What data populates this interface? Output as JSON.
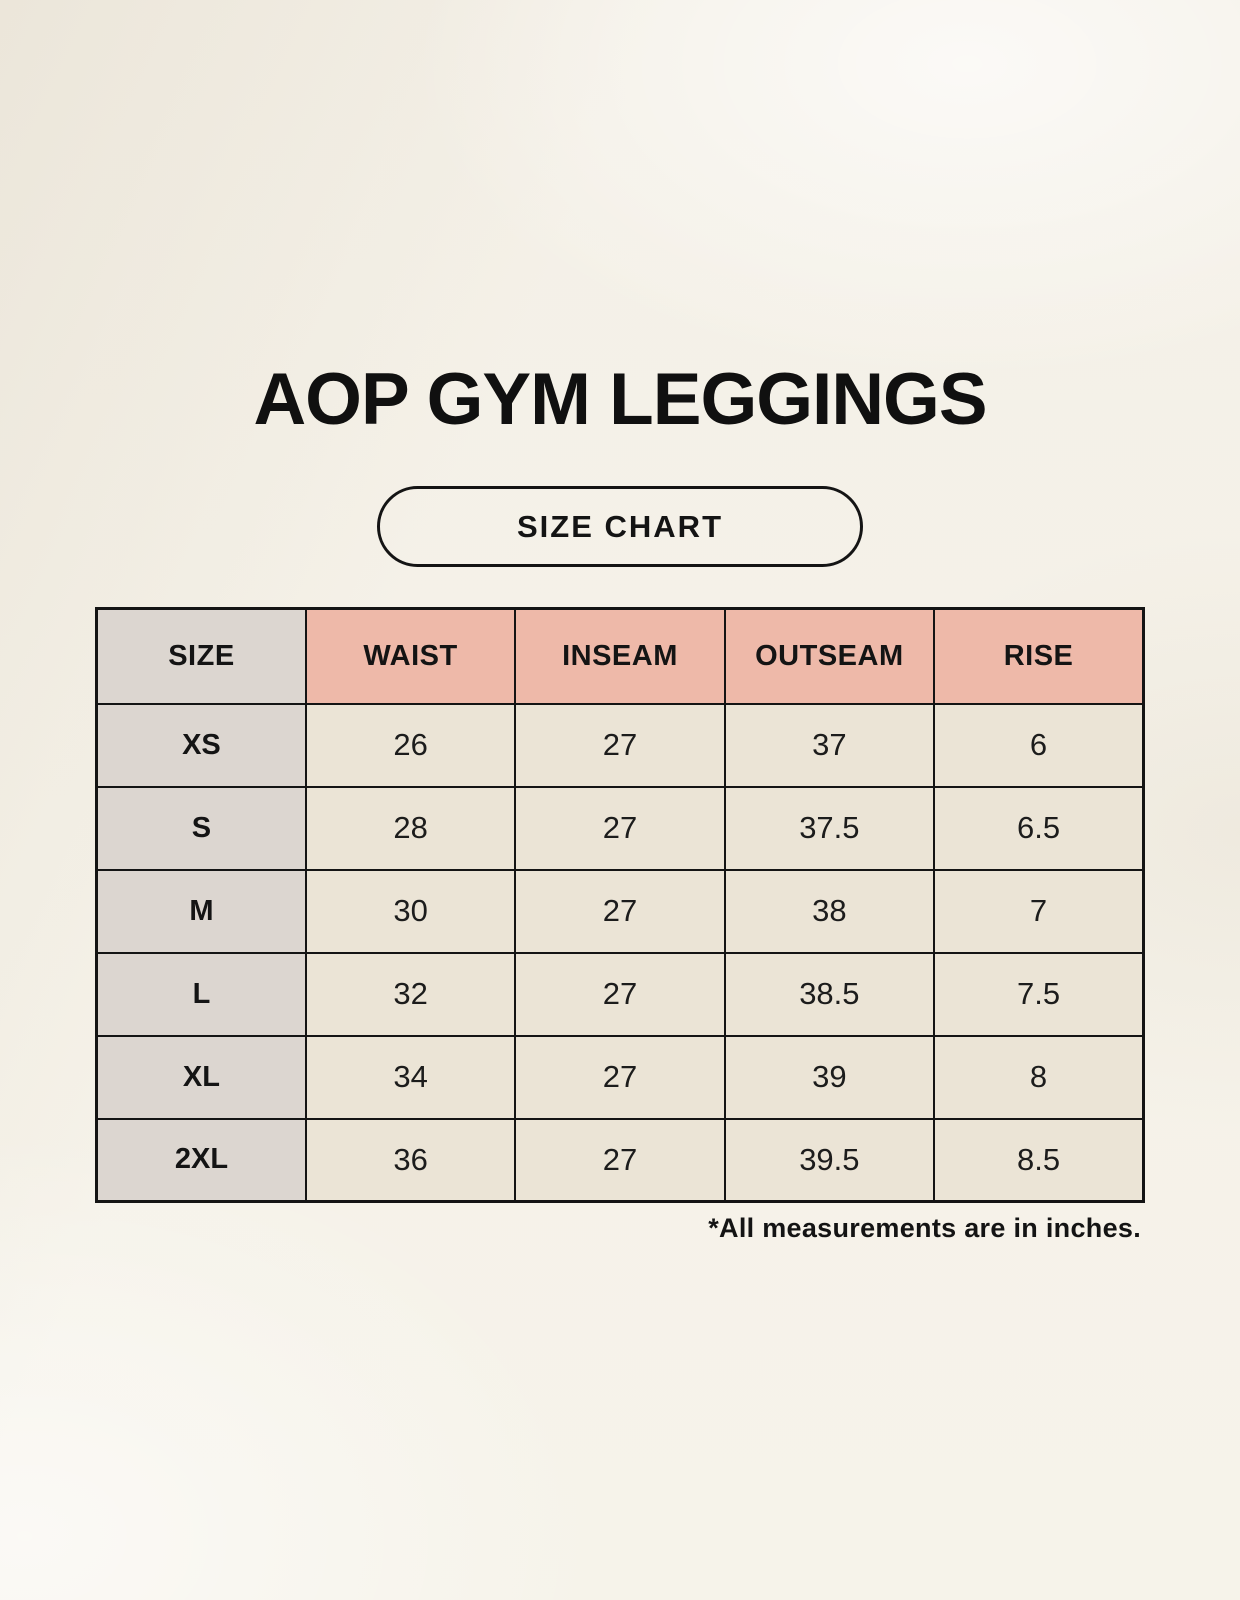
{
  "page": {
    "title": "AOP GYM LEGGINGS",
    "badge": "SIZE CHART",
    "footnote": "*All measurements are in inches."
  },
  "chart_data": {
    "type": "table",
    "title": "AOP GYM LEGGINGS",
    "subtitle": "SIZE CHART",
    "units": "inches",
    "columns": [
      "SIZE",
      "WAIST",
      "INSEAM",
      "OUTSEAM",
      "RISE"
    ],
    "rows": [
      [
        "XS",
        "26",
        "27",
        "37",
        "6"
      ],
      [
        "S",
        "28",
        "27",
        "37.5",
        "6.5"
      ],
      [
        "M",
        "30",
        "27",
        "38",
        "7"
      ],
      [
        "L",
        "32",
        "27",
        "38.5",
        "7.5"
      ],
      [
        "XL",
        "34",
        "27",
        "39",
        "8"
      ],
      [
        "2XL",
        "36",
        "27",
        "39.5",
        "8.5"
      ]
    ],
    "footnote": "*All measurements are in inches."
  },
  "colors": {
    "background": "#f5f1e8",
    "header_pink": "#eeb9a9",
    "size_gray": "#dcd6d0",
    "cell_beige": "#ebe4d6",
    "border": "#141414",
    "text": "#141414"
  }
}
